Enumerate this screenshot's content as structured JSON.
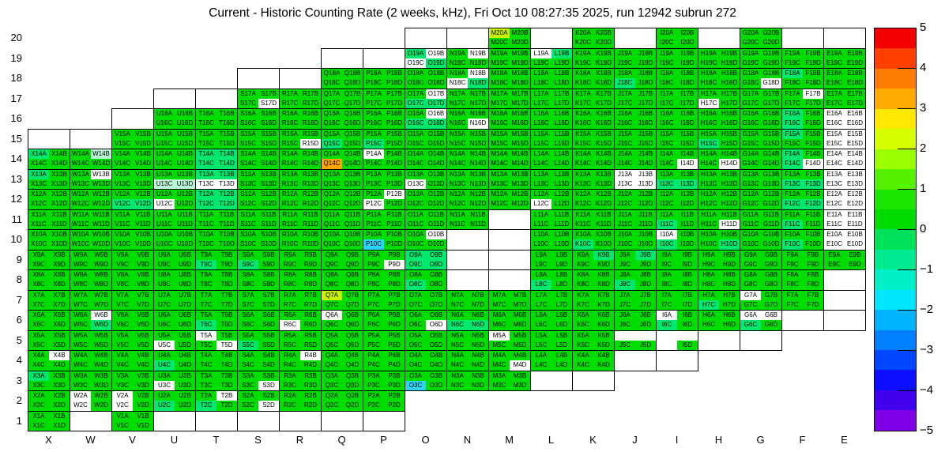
{
  "chart_data": {
    "type": "heatmap",
    "title": "Current - Historic Counting Rate (2 weeks, kHz), Fri Oct 10 08:27:35 2025, run 12942 subrun 272",
    "columns": [
      "X",
      "W",
      "V",
      "U",
      "T",
      "S",
      "R",
      "Q",
      "P",
      "O",
      "N",
      "M",
      "L",
      "K",
      "J",
      "I",
      "H",
      "G",
      "F",
      "E"
    ],
    "rows": [
      20,
      19,
      18,
      17,
      16,
      15,
      14,
      13,
      12,
      11,
      10,
      9,
      8,
      7,
      6,
      5,
      4,
      3,
      2,
      1
    ],
    "cell_label_suffixes": [
      "A",
      "B",
      "C",
      "D"
    ],
    "row_cols": {
      "20": [
        "M",
        "K",
        "I",
        "G"
      ],
      "19": [
        "O",
        "N",
        "M",
        "L",
        "K",
        "J",
        "I",
        "H",
        "G",
        "F",
        "E"
      ],
      "18": [
        "Q",
        "P",
        "O",
        "N",
        "M",
        "L",
        "K",
        "J",
        "I",
        "H",
        "G",
        "F",
        "E"
      ],
      "17": [
        "S",
        "R",
        "Q",
        "P",
        "O",
        "N",
        "M",
        "L",
        "K",
        "J",
        "I",
        "H",
        "G",
        "F",
        "E"
      ],
      "16": [
        "U",
        "T",
        "S",
        "R",
        "Q",
        "P",
        "O",
        "N",
        "M",
        "L",
        "K",
        "J",
        "I",
        "H",
        "G",
        "F",
        "E"
      ],
      "15": [
        "V",
        "U",
        "T",
        "S",
        "R",
        "Q",
        "P",
        "O",
        "N",
        "M",
        "L",
        "K",
        "J",
        "I",
        "H",
        "G",
        "F",
        "E"
      ],
      "14": "ALL",
      "13": "ALL",
      "12": "ALL",
      "11": [
        "X",
        "W",
        "V",
        "U",
        "T",
        "S",
        "R",
        "Q",
        "P",
        "O",
        "N",
        "L",
        "K",
        "J",
        "I",
        "H",
        "G",
        "F",
        "E"
      ],
      "10": [
        "X",
        "W",
        "V",
        "U",
        "T",
        "S",
        "R",
        "Q",
        "P",
        "O",
        "L",
        "K",
        "J",
        "I",
        "H",
        "G",
        "F",
        "E"
      ],
      "9": [
        "X",
        "W",
        "V",
        "U",
        "T",
        "S",
        "R",
        "Q",
        "P",
        "O",
        "L",
        "K",
        "J",
        "I",
        "H",
        "G",
        "F",
        "E"
      ],
      "8": [
        "X",
        "W",
        "V",
        "U",
        "T",
        "S",
        "R",
        "Q",
        "P",
        "O",
        "L",
        "K",
        "J",
        "I",
        "H",
        "G",
        "F"
      ],
      "7": [
        "X",
        "W",
        "V",
        "U",
        "T",
        "S",
        "R",
        "Q",
        "P",
        "O",
        "N",
        "M",
        "L",
        "K",
        "J",
        "I",
        "H",
        "G",
        "F"
      ],
      "6": [
        "X",
        "W",
        "V",
        "U",
        "T",
        "S",
        "R",
        "Q",
        "P",
        "O",
        "N",
        "M",
        "L",
        "K",
        "J",
        "I",
        "H",
        "G"
      ],
      "5": [
        "X",
        "W",
        "V",
        "U",
        "T",
        "S",
        "R",
        "Q",
        "P",
        "O",
        "N",
        "M",
        "L",
        "K"
      ],
      "4": [
        "X",
        "W",
        "V",
        "U",
        "T",
        "S",
        "R",
        "Q",
        "P",
        "O",
        "N",
        "M",
        "L",
        "K"
      ],
      "3": [
        "X",
        "W",
        "V",
        "U",
        "T",
        "S",
        "R",
        "Q",
        "P",
        "O",
        "N",
        "M"
      ],
      "2": [
        "X",
        "W",
        "V",
        "U",
        "T",
        "S",
        "R",
        "Q",
        "P"
      ],
      "1": [
        "X",
        "V"
      ]
    },
    "partial_blocks": {
      "J5": [
        "C",
        "D"
      ],
      "I5": [
        "D"
      ]
    },
    "empty_bordered_cells": [
      "O20",
      "N20",
      "L20",
      "J20",
      "H20",
      "F20",
      "E20",
      "Q19",
      "P19",
      "S18",
      "R18",
      "U17",
      "T17",
      "V16",
      "X15",
      "W15",
      "M11",
      "N10",
      "M10",
      "N9",
      "M9",
      "N8",
      "M8",
      "E8",
      "E7",
      "F6",
      "E6",
      "H5",
      "G5",
      "J4",
      "I4",
      "L3",
      "K3",
      "W1",
      "U1",
      "T1",
      "S1",
      "R1",
      "Q1",
      "P1"
    ],
    "palette": {
      "green": "#00dd00",
      "spring": "#00e86e",
      "pale": "#b9f6d6",
      "cyan": "#2cd4f7",
      "chartreuse": "#c9f400",
      "orange": "#ffa500",
      "white": "#ffffff"
    },
    "overrides": {
      "white": [
        "O19B",
        "O19C",
        "N19B",
        "L19A",
        "N18B",
        "N18C",
        "G18D",
        "S17D",
        "O17B",
        "H17C",
        "F17B",
        "O16B",
        "N16D",
        "E16A",
        "E16B",
        "E16C",
        "E16D",
        "R15D",
        "E15A",
        "E15B",
        "E15C",
        "E15D",
        "P14A",
        "I14D",
        "H14D",
        "F14D",
        "E14A",
        "E14B",
        "E14C",
        "E14D",
        "W13B",
        "T13C",
        "T13D",
        "O13C",
        "J13A",
        "J13B",
        "J13C",
        "J13D",
        "E13A",
        "E13B",
        "E13C",
        "E13D",
        "U12C",
        "P12B",
        "P12C",
        "L12C",
        "E12A",
        "E12B",
        "E12C",
        "E12D",
        "H11D",
        "E11A",
        "E11B",
        "E11C",
        "E11D",
        "O10B",
        "I10A",
        "E10A",
        "E10B",
        "E10C",
        "E10D",
        "P9D",
        "G7A",
        "W6B",
        "R6C",
        "Q6A",
        "O6D",
        "I6A",
        "G6A",
        "G6B",
        "U5C",
        "T5A",
        "T5D",
        "M5A",
        "X4B",
        "R4B",
        "M4D",
        "U3C",
        "S3D",
        "W2A",
        "W2C",
        "V2A",
        "V2C",
        "T2B",
        "S2D"
      ],
      "spring": [
        "O19A",
        "O19D",
        "L19B",
        "N18D",
        "J18C",
        "F18A",
        "O17C",
        "O17D",
        "O16C",
        "O16D",
        "F16A",
        "F16C",
        "Q15C",
        "P15C",
        "F15A",
        "H15C",
        "X14A",
        "T14A",
        "T14B",
        "T14C",
        "T14D",
        "F14A",
        "F14C",
        "X13A",
        "T13A",
        "T13B",
        "I13C",
        "I13D",
        "F13C",
        "F13D",
        "V12C",
        "V12D",
        "T12A",
        "T12B",
        "T12C",
        "T12D",
        "F12C",
        "F12D",
        "I11C",
        "F11C",
        "I10C",
        "K10C",
        "F10C",
        "H10D",
        "O9A",
        "O9B",
        "O9C",
        "O9D",
        "K9B",
        "J9B",
        "T9C",
        "S9C",
        "O8C",
        "L8C",
        "J8C",
        "H7C",
        "W6D",
        "T6C",
        "N6C",
        "N6D",
        "I6C",
        "G6C",
        "S5C",
        "U4C",
        "X3A",
        "U2C",
        "T2C"
      ],
      "pale": [
        "W14B",
        "U13C",
        "U13D"
      ],
      "cyan": [
        "P10C",
        "O3C"
      ],
      "chartreuse": [
        "Q7A",
        "M20A"
      ],
      "orange": [
        "Q14C"
      ]
    },
    "colorbar": {
      "band_colors_top_to_bottom": [
        "#f40000",
        "#ff4000",
        "#ff7d00",
        "#ffaa00",
        "#ffe800",
        "#d6ff00",
        "#9bff00",
        "#55f200",
        "#1ce600",
        "#00dc00",
        "#00e259",
        "#00ea92",
        "#00efc6",
        "#00e7fc",
        "#00b3ff",
        "#0080ff",
        "#0046ff",
        "#0d0dff",
        "#4000ee",
        "#8000e8"
      ],
      "tick_labels": [
        "5",
        "4",
        "3",
        "2",
        "1",
        "0",
        "−1",
        "−2",
        "−3",
        "−4",
        "−5"
      ],
      "min": -5,
      "max": 5
    }
  }
}
